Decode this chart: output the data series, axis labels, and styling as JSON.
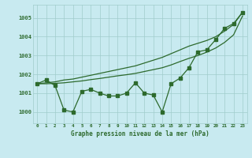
{
  "xlabel": "Graphe pression niveau de la mer (hPa)",
  "bg_color": "#c8eaf0",
  "line_color": "#2d6a2d",
  "grid_color": "#a0cccc",
  "ylim": [
    999.4,
    1005.7
  ],
  "yticks": [
    1000,
    1001,
    1002,
    1003,
    1004,
    1005
  ],
  "x_labels": [
    "0",
    "1",
    "2",
    "3",
    "4",
    "5",
    "6",
    "7",
    "8",
    "9",
    "10",
    "11",
    "12",
    "13",
    "14",
    "15",
    "16",
    "17",
    "18",
    "19",
    "20",
    "21",
    "22",
    "23"
  ],
  "series_jagged": [
    1001.5,
    1001.7,
    1001.4,
    1000.1,
    1000.0,
    1001.1,
    1001.2,
    1001.0,
    1000.85,
    1000.85,
    1001.0,
    1001.55,
    1001.0,
    1000.9,
    1000.0,
    1001.5,
    1001.8,
    1002.35,
    1003.2,
    1003.3,
    1003.85,
    1004.45,
    1004.7,
    1005.3
  ],
  "series_trend_high": [
    1001.5,
    1001.55,
    1001.6,
    1001.7,
    1001.75,
    1001.85,
    1001.95,
    1002.05,
    1002.15,
    1002.25,
    1002.35,
    1002.45,
    1002.6,
    1002.75,
    1002.9,
    1003.1,
    1003.3,
    1003.5,
    1003.65,
    1003.8,
    1004.0,
    1004.3,
    1004.65,
    1005.3
  ],
  "series_trend_low": [
    1001.5,
    1001.5,
    1001.52,
    1001.55,
    1001.6,
    1001.65,
    1001.72,
    1001.78,
    1001.85,
    1001.92,
    1001.98,
    1002.05,
    1002.15,
    1002.25,
    1002.35,
    1002.5,
    1002.68,
    1002.85,
    1003.0,
    1003.18,
    1003.4,
    1003.7,
    1004.1,
    1005.1
  ]
}
